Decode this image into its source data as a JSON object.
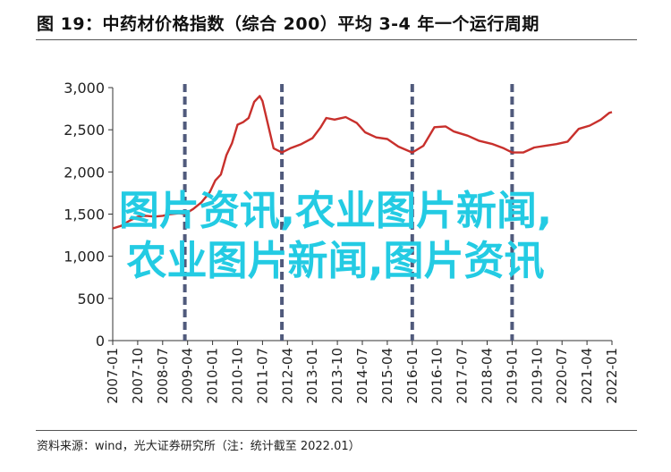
{
  "header": {
    "title": "图 19：中药材价格指数（综合 200）平均 3-4 年一个运行周期"
  },
  "footer": {
    "source": "资料来源：wind，光大证券研究所（注：统计截至 2022.01）"
  },
  "watermark": {
    "line1": "图片资讯,农业图片新闻,",
    "line2": "农业图片新闻,图片资讯",
    "color": "#23cbe3"
  },
  "chart_data": {
    "type": "line",
    "title": "",
    "xlabel": "",
    "ylabel": "",
    "ylim": [
      0,
      3000
    ],
    "yticks": [
      0,
      500,
      1000,
      1500,
      2000,
      2500,
      3000
    ],
    "ytick_labels": [
      "0",
      "500",
      "1,000",
      "1,500",
      "2,000",
      "2,500",
      "3,000"
    ],
    "xlim": [
      "2007-01",
      "2022-01"
    ],
    "xtick_labels": [
      "2007-01",
      "2007-10",
      "2008-07",
      "2009-04",
      "2010-01",
      "2010-10",
      "2011-07",
      "2012-04",
      "2013-01",
      "2013-10",
      "2014-07",
      "2015-04",
      "2016-01",
      "2016-10",
      "2017-07",
      "2018-04",
      "2019-01",
      "2019-10",
      "2020-07",
      "2021-04",
      "2022-01"
    ],
    "grid": false,
    "line_color": "#c8302c",
    "divider_color": "#505a7c",
    "cycle_dividers": [
      "2009-03",
      "2012-02",
      "2016-01",
      "2019-01"
    ],
    "series": [
      {
        "points": [
          [
            "2007-01",
            1330
          ],
          [
            "2007-04",
            1360
          ],
          [
            "2007-07",
            1420
          ],
          [
            "2007-10",
            1470
          ],
          [
            "2008-01",
            1480
          ],
          [
            "2008-04",
            1470
          ],
          [
            "2008-07",
            1480
          ],
          [
            "2008-10",
            1500
          ],
          [
            "2009-01",
            1510
          ],
          [
            "2009-03",
            1500
          ],
          [
            "2009-06",
            1560
          ],
          [
            "2009-09",
            1640
          ],
          [
            "2009-12",
            1760
          ],
          [
            "2010-02",
            1900
          ],
          [
            "2010-04",
            1970
          ],
          [
            "2010-06",
            2200
          ],
          [
            "2010-08",
            2340
          ],
          [
            "2010-10",
            2560
          ],
          [
            "2010-12",
            2590
          ],
          [
            "2011-02",
            2640
          ],
          [
            "2011-04",
            2830
          ],
          [
            "2011-06",
            2900
          ],
          [
            "2011-07",
            2840
          ],
          [
            "2011-09",
            2560
          ],
          [
            "2011-11",
            2280
          ],
          [
            "2012-02",
            2230
          ],
          [
            "2012-05",
            2280
          ],
          [
            "2012-09",
            2330
          ],
          [
            "2013-01",
            2400
          ],
          [
            "2013-04",
            2530
          ],
          [
            "2013-06",
            2640
          ],
          [
            "2013-09",
            2620
          ],
          [
            "2014-01",
            2650
          ],
          [
            "2014-05",
            2580
          ],
          [
            "2014-08",
            2470
          ],
          [
            "2014-12",
            2410
          ],
          [
            "2015-04",
            2390
          ],
          [
            "2015-08",
            2300
          ],
          [
            "2016-01",
            2230
          ],
          [
            "2016-05",
            2310
          ],
          [
            "2016-09",
            2530
          ],
          [
            "2017-01",
            2540
          ],
          [
            "2017-04",
            2480
          ],
          [
            "2017-09",
            2430
          ],
          [
            "2018-01",
            2370
          ],
          [
            "2018-06",
            2330
          ],
          [
            "2018-10",
            2280
          ],
          [
            "2019-01",
            2230
          ],
          [
            "2019-05",
            2230
          ],
          [
            "2019-09",
            2290
          ],
          [
            "2020-01",
            2310
          ],
          [
            "2020-05",
            2330
          ],
          [
            "2020-09",
            2360
          ],
          [
            "2021-01",
            2510
          ],
          [
            "2021-05",
            2550
          ],
          [
            "2021-09",
            2620
          ],
          [
            "2021-12",
            2700
          ],
          [
            "2022-01",
            2710
          ]
        ]
      }
    ]
  }
}
